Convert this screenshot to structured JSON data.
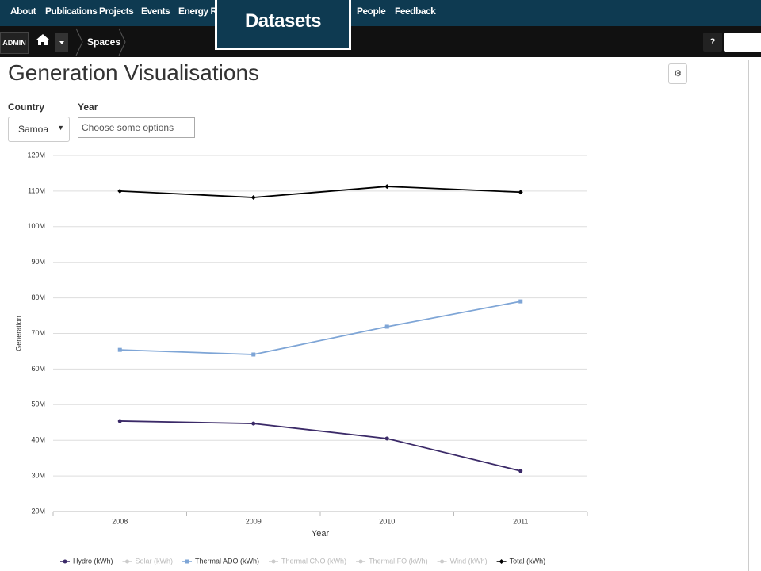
{
  "nav": {
    "items": [
      "About",
      "Publications",
      "Projects",
      "Events",
      "Energy Res",
      "People",
      "Feedback"
    ],
    "popup": "Datasets"
  },
  "toolbar": {
    "admin": "ADMIN",
    "breadcrumb": "Spaces",
    "help": "?"
  },
  "page": {
    "title": "Generation Visualisations"
  },
  "filters": {
    "country_label": "Country",
    "country_value": "Samoa",
    "year_label": "Year",
    "year_placeholder": "Choose some options"
  },
  "chart_data": {
    "type": "line",
    "x_label": "Year",
    "y_label": "Generation",
    "categories": [
      "2008",
      "2009",
      "2010",
      "2011"
    ],
    "ylim": [
      20000000,
      120000000
    ],
    "yticks": [
      {
        "value": 20000000,
        "label": "20M"
      },
      {
        "value": 30000000,
        "label": "30M"
      },
      {
        "value": 40000000,
        "label": "40M"
      },
      {
        "value": 50000000,
        "label": "50M"
      },
      {
        "value": 60000000,
        "label": "60M"
      },
      {
        "value": 70000000,
        "label": "70M"
      },
      {
        "value": 80000000,
        "label": "80M"
      },
      {
        "value": 90000000,
        "label": "90M"
      },
      {
        "value": 100000000,
        "label": "100M"
      },
      {
        "value": 110000000,
        "label": "110M"
      },
      {
        "value": 120000000,
        "label": "120M"
      }
    ],
    "grid": true,
    "legend": "bottom",
    "series": [
      {
        "name": "Hydro (kWh)",
        "color": "#3b2a68",
        "marker": "circle",
        "values": [
          45400000,
          44700000,
          40500000,
          31400000
        ]
      },
      {
        "name": "Solar (kWh)",
        "color": "#cccccc",
        "visible": false
      },
      {
        "name": "Thermal ADO (kWh)",
        "color": "#7ea5d6",
        "marker": "square",
        "values": [
          65400000,
          64100000,
          71900000,
          79000000
        ]
      },
      {
        "name": "Thermal CNO (kWh)",
        "color": "#cccccc",
        "visible": false
      },
      {
        "name": "Thermal FO (kWh)",
        "color": "#cccccc",
        "visible": false
      },
      {
        "name": "Wind (kWh)",
        "color": "#cccccc",
        "visible": false
      },
      {
        "name": "Total (kWh)",
        "color": "#000000",
        "marker": "diamond",
        "values": [
          110000000,
          108200000,
          111300000,
          109700000
        ]
      }
    ]
  }
}
